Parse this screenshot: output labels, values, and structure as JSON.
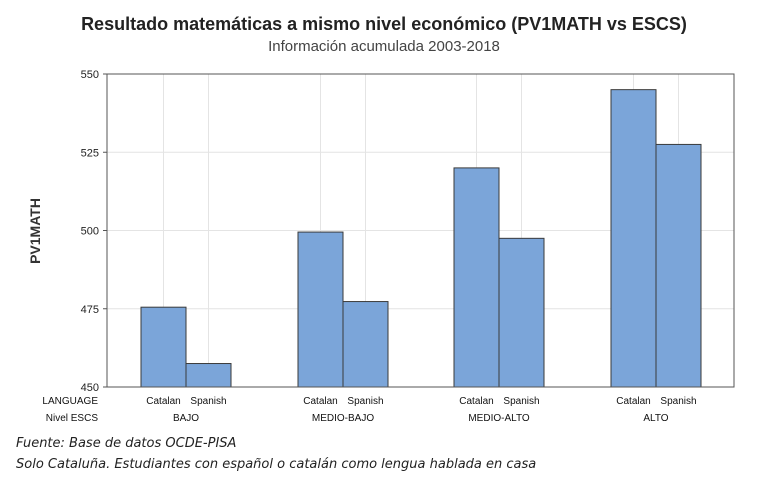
{
  "chart_data": {
    "type": "bar",
    "title": "Resultado matemáticas a mismo nivel económico (PV1MATH vs ESCS)",
    "subtitle": "Información acumulada 2003-2018",
    "ylabel": "PV1MATH",
    "ylim": [
      450,
      550
    ],
    "yticks": [
      450,
      475,
      500,
      525,
      550
    ],
    "grid": true,
    "row_labels": [
      "LANGUAGE",
      "Nivel ESCS"
    ],
    "groups": [
      "BAJO",
      "MEDIO-BAJO",
      "MEDIO-ALTO",
      "ALTO"
    ],
    "subcategories": [
      "Catalan",
      "Spanish"
    ],
    "series": [
      {
        "group": "BAJO",
        "values": [
          475.5,
          457.5
        ]
      },
      {
        "group": "MEDIO-BAJO",
        "values": [
          499.5,
          477.3
        ]
      },
      {
        "group": "MEDIO-ALTO",
        "values": [
          520,
          497.5
        ]
      },
      {
        "group": "ALTO",
        "values": [
          545,
          527.5
        ]
      }
    ],
    "bar_color": "#7BA5D9",
    "bar_edge": "#3a3a3a"
  },
  "footer": {
    "source": "Fuente: Base de datos OCDE-PISA",
    "note": "Solo Cataluña. Estudiantes con español o catalán como lengua hablada en casa"
  }
}
